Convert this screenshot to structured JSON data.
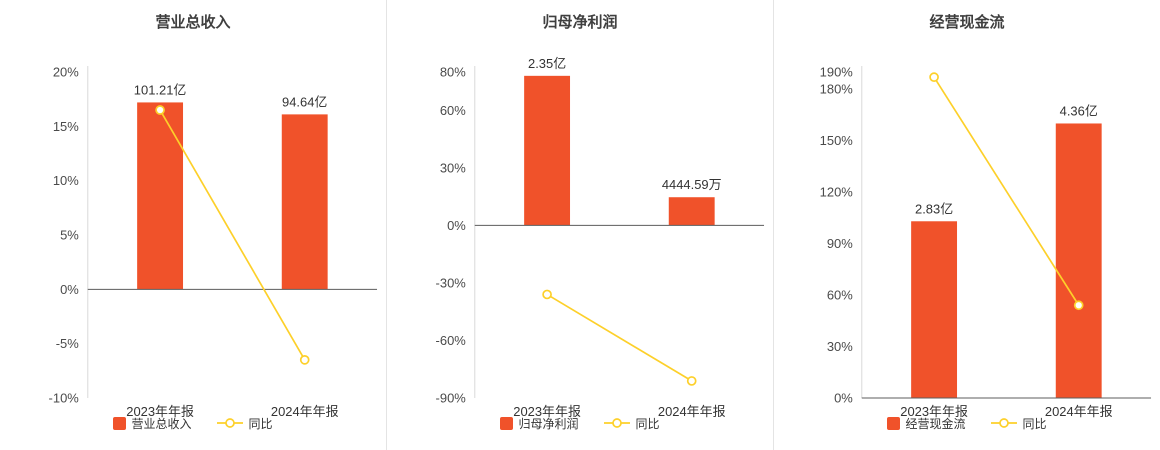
{
  "colors": {
    "bar": "#f0522a",
    "line": "#fdd02a",
    "zero_axis": "#5c5c5c",
    "y_axis": "#d9d9d9",
    "divider": "#e4e4e4"
  },
  "chart_data": [
    {
      "type": "bar+line",
      "title": "营业总收入",
      "categories": [
        "2023年年报",
        "2024年年报"
      ],
      "bar": {
        "name": "营业总收入",
        "value_labels": [
          "101.21亿",
          "94.64亿"
        ],
        "plotted_pct": [
          17.2,
          16.1
        ]
      },
      "line": {
        "name": "同比",
        "values_pct": [
          16.5,
          -6.49
        ]
      },
      "yticks": [
        20,
        15,
        10,
        5,
        0,
        -5,
        -10
      ],
      "ylim": [
        -10,
        20
      ],
      "grid": false,
      "legend_position": "bottom"
    },
    {
      "type": "bar+line",
      "title": "归母净利润",
      "categories": [
        "2023年年报",
        "2024年年报"
      ],
      "bar": {
        "name": "归母净利润",
        "value_labels": [
          "2.35亿",
          "4444.59万"
        ],
        "plotted_pct": [
          78,
          14.7
        ]
      },
      "line": {
        "name": "同比",
        "values_pct": [
          -36,
          -81.09
        ]
      },
      "yticks": [
        80,
        60,
        30,
        0,
        -30,
        -60,
        -90
      ],
      "ylim": [
        -90,
        80
      ],
      "grid": false,
      "legend_position": "bottom"
    },
    {
      "type": "bar+line",
      "title": "经营现金流",
      "categories": [
        "2023年年报",
        "2024年年报"
      ],
      "bar": {
        "name": "经营现金流",
        "value_labels": [
          "2.83亿",
          "4.36亿"
        ],
        "plotted_pct": [
          103,
          160
        ]
      },
      "line": {
        "name": "同比",
        "values_pct": [
          187,
          54.06
        ]
      },
      "yticks": [
        190,
        180,
        150,
        120,
        90,
        60,
        30,
        0
      ],
      "ylim": [
        0,
        190
      ],
      "grid": false,
      "legend_position": "bottom"
    }
  ]
}
